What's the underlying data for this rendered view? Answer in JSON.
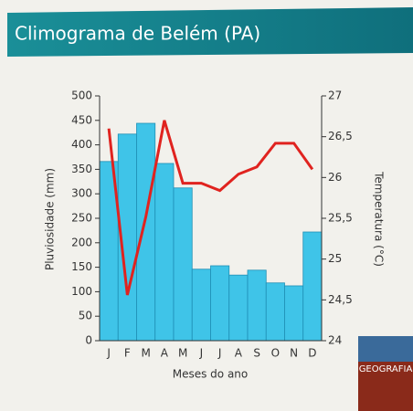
{
  "chart_data": {
    "type": "bar",
    "title": "Climograma de Belém (PA)",
    "categories": [
      "J",
      "F",
      "M",
      "A",
      "M",
      "J",
      "J",
      "A",
      "S",
      "O",
      "N",
      "D"
    ],
    "series": [
      {
        "name": "Pluviosidade",
        "type": "bar",
        "color": "#3fc4e8",
        "axis": "y",
        "values": [
          366,
          422,
          444,
          362,
          312,
          146,
          153,
          134,
          144,
          118,
          112,
          222
        ]
      },
      {
        "name": "Temperatura",
        "type": "line",
        "color": "#e0231f",
        "axis": "y2",
        "values": [
          26.6,
          24.56,
          25.52,
          26.7,
          25.93,
          25.93,
          25.84,
          26.04,
          26.13,
          26.42,
          26.42,
          26.1
        ]
      }
    ],
    "ylabel": "Pluviosidade (mm)",
    "y2label": "Temperatura (°C)",
    "xlabel": "Meses do ano",
    "ylim": [
      0,
      500
    ],
    "yticks": [
      0,
      50,
      100,
      150,
      200,
      250,
      300,
      350,
      400,
      450,
      500
    ],
    "y2lim": [
      24,
      27
    ],
    "y2ticks": [
      24,
      {
        "value": 24.5,
        "label": "24,5"
      },
      25,
      {
        "value": 25.5,
        "label": "25,5"
      },
      26,
      {
        "value": 26.5,
        "label": "26,5"
      },
      27
    ],
    "cover_text": "GEOGRAFIA"
  }
}
